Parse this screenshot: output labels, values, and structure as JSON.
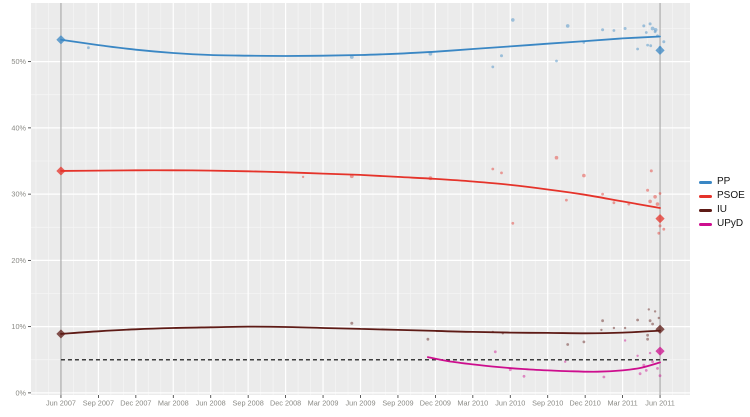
{
  "chart_data": {
    "type": "line",
    "description_visible_title": "",
    "x_axis": {
      "range_months": [
        -2.4,
        50.4
      ],
      "ticks": [
        {
          "t": 0,
          "label": "Jun 2007"
        },
        {
          "t": 3,
          "label": "Sep 2007"
        },
        {
          "t": 6,
          "label": "Dec 2007"
        },
        {
          "t": 9,
          "label": "Mar 2008"
        },
        {
          "t": 12,
          "label": "Jun 2008"
        },
        {
          "t": 15,
          "label": "Sep 2008"
        },
        {
          "t": 18,
          "label": "Dec 2008"
        },
        {
          "t": 21,
          "label": "Mar 2009"
        },
        {
          "t": 24,
          "label": "Jun 2009"
        },
        {
          "t": 27,
          "label": "Sep 2009"
        },
        {
          "t": 30,
          "label": "Dec 2009"
        },
        {
          "t": 33,
          "label": "Mar 2010"
        },
        {
          "t": 36,
          "label": "Jun 2010"
        },
        {
          "t": 39,
          "label": "Sep 2010"
        },
        {
          "t": 42,
          "label": "Dec 2010"
        },
        {
          "t": 45,
          "label": "Mar 2011"
        },
        {
          "t": 48,
          "label": "Jun 2011"
        }
      ]
    },
    "y_axis": {
      "range_pct": [
        -0.32,
        58.85
      ],
      "unit": "%",
      "ticks": [
        {
          "v": 0,
          "label": "0%"
        },
        {
          "v": 10,
          "label": "10%"
        },
        {
          "v": 20,
          "label": "20%"
        },
        {
          "v": 30,
          "label": "30%"
        },
        {
          "v": 40,
          "label": "40%"
        },
        {
          "v": 50,
          "label": "50%"
        }
      ],
      "minor_gridlines": [
        5,
        15,
        25,
        35,
        45,
        55
      ]
    },
    "grid": {
      "major_every_months": 3,
      "minor_every_months": 1,
      "on": true
    },
    "threshold_line": {
      "value": 5,
      "style": "dashed"
    },
    "election_lines_t": [
      0,
      48
    ],
    "legend": {
      "position": "right",
      "labels": [
        "PP",
        "PSOE",
        "IU",
        "UPyD"
      ]
    },
    "series": [
      {
        "name": "PP",
        "color": "#3a87c4",
        "trend": [
          [
            0,
            53.3
          ],
          [
            3,
            52.5
          ],
          [
            6,
            51.8
          ],
          [
            9,
            51.3
          ],
          [
            12,
            51.0
          ],
          [
            15,
            50.9
          ],
          [
            18,
            50.85
          ],
          [
            21,
            50.9
          ],
          [
            24,
            51.0
          ],
          [
            27,
            51.2
          ],
          [
            30,
            51.5
          ],
          [
            33,
            51.9
          ],
          [
            36,
            52.3
          ],
          [
            39,
            52.7
          ],
          [
            42,
            53.1
          ],
          [
            45,
            53.5
          ],
          [
            48,
            53.8
          ]
        ],
        "polls": [
          [
            2.2,
            52.1,
            1.4
          ],
          [
            23.3,
            50.7,
            1.9
          ],
          [
            29.6,
            51.2,
            1.9
          ],
          [
            34.6,
            49.2,
            1.4
          ],
          [
            35.3,
            50.9,
            1.5
          ],
          [
            36.2,
            56.3,
            1.8
          ],
          [
            39.7,
            50.1,
            1.4
          ],
          [
            40.6,
            55.4,
            1.8
          ],
          [
            41.9,
            52.9,
            1.4
          ],
          [
            43.4,
            54.8,
            1.5
          ],
          [
            44.3,
            54.7,
            1.4
          ],
          [
            45.2,
            55.0,
            1.5
          ],
          [
            46.2,
            51.9,
            1.4
          ],
          [
            46.7,
            55.4,
            1.5
          ],
          [
            46.9,
            54.4,
            1.4
          ],
          [
            47.0,
            52.5,
            1.4
          ],
          [
            47.2,
            55.7,
            1.5
          ],
          [
            47.25,
            52.4,
            1.4
          ],
          [
            47.4,
            55.0,
            1.9
          ],
          [
            47.6,
            54.5,
            1.4
          ],
          [
            47.65,
            54.8,
            1.8
          ],
          [
            47.8,
            53.9,
            1.4
          ],
          [
            48.0,
            52.2,
            1.4
          ],
          [
            48.3,
            53.0,
            1.5
          ]
        ],
        "election_results": [
          {
            "t": 0,
            "value": 53.3
          },
          {
            "t": 48,
            "value": 51.7
          }
        ]
      },
      {
        "name": "PSOE",
        "color": "#e5332a",
        "trend": [
          [
            0,
            33.5
          ],
          [
            3,
            33.55
          ],
          [
            6,
            33.6
          ],
          [
            9,
            33.6
          ],
          [
            12,
            33.55
          ],
          [
            15,
            33.45
          ],
          [
            18,
            33.3
          ],
          [
            21,
            33.1
          ],
          [
            24,
            32.9
          ],
          [
            27,
            32.6
          ],
          [
            30,
            32.3
          ],
          [
            33,
            31.9
          ],
          [
            36,
            31.4
          ],
          [
            39,
            30.7
          ],
          [
            42,
            29.9
          ],
          [
            45,
            28.9
          ],
          [
            48,
            27.9
          ]
        ],
        "polls": [
          [
            19.4,
            32.6,
            1.2
          ],
          [
            23.3,
            32.7,
            1.9
          ],
          [
            29.6,
            32.4,
            1.9
          ],
          [
            34.6,
            33.8,
            1.4
          ],
          [
            35.3,
            33.2,
            1.4
          ],
          [
            36.2,
            25.6,
            1.4
          ],
          [
            39.7,
            35.5,
            1.8
          ],
          [
            40.5,
            29.1,
            1.4
          ],
          [
            41.9,
            32.8,
            1.8
          ],
          [
            43.4,
            30.0,
            1.4
          ],
          [
            44.3,
            28.7,
            1.4
          ],
          [
            45.5,
            28.5,
            1.4
          ],
          [
            47.0,
            30.6,
            1.5
          ],
          [
            47.2,
            28.9,
            1.8
          ],
          [
            47.3,
            33.5,
            1.5
          ],
          [
            47.6,
            29.6,
            1.8
          ],
          [
            47.8,
            28.5,
            1.8
          ],
          [
            47.9,
            24.1,
            1.4
          ],
          [
            48.0,
            25.2,
            1.5
          ],
          [
            48.0,
            30.1,
            1.4
          ],
          [
            48.3,
            24.7,
            1.4
          ]
        ],
        "election_results": [
          {
            "t": 0,
            "value": 33.5
          },
          {
            "t": 48,
            "value": 26.3
          }
        ]
      },
      {
        "name": "IU",
        "color": "#5e1b16",
        "trend": [
          [
            0,
            8.9
          ],
          [
            3,
            9.3
          ],
          [
            6,
            9.6
          ],
          [
            9,
            9.8
          ],
          [
            12,
            9.9
          ],
          [
            15,
            10.0
          ],
          [
            18,
            9.95
          ],
          [
            21,
            9.8
          ],
          [
            24,
            9.65
          ],
          [
            27,
            9.5
          ],
          [
            30,
            9.35
          ],
          [
            33,
            9.2
          ],
          [
            36,
            9.1
          ],
          [
            39,
            9.05
          ],
          [
            42,
            9.0
          ],
          [
            45,
            9.1
          ],
          [
            48,
            9.4
          ]
        ],
        "polls": [
          [
            23.3,
            10.5,
            1.5
          ],
          [
            29.4,
            8.1,
            1.4
          ],
          [
            34.6,
            9.2,
            1.2
          ],
          [
            35.4,
            9.0,
            1.2
          ],
          [
            40.6,
            7.3,
            1.4
          ],
          [
            41.9,
            7.7,
            1.4
          ],
          [
            43.3,
            9.5,
            1.2
          ],
          [
            43.4,
            10.9,
            1.4
          ],
          [
            44.3,
            9.8,
            1.2
          ],
          [
            45.2,
            9.8,
            1.2
          ],
          [
            46.2,
            11.0,
            1.4
          ],
          [
            47.0,
            8.7,
            1.4
          ],
          [
            47.0,
            8.1,
            1.4
          ],
          [
            47.1,
            12.6,
            1.2
          ],
          [
            47.2,
            10.9,
            1.4
          ],
          [
            47.4,
            10.4,
            1.4
          ],
          [
            47.6,
            12.3,
            1.2
          ],
          [
            47.9,
            11.3,
            1.2
          ]
        ],
        "election_results": [
          {
            "t": 0,
            "value": 8.9
          },
          {
            "t": 48,
            "value": 9.6
          }
        ]
      },
      {
        "name": "UPyD",
        "color": "#cd0e8e",
        "trend": [
          [
            29.4,
            5.4
          ],
          [
            31,
            4.8
          ],
          [
            33,
            4.3
          ],
          [
            35,
            3.9
          ],
          [
            37,
            3.6
          ],
          [
            39,
            3.4
          ],
          [
            41,
            3.25
          ],
          [
            43,
            3.2
          ],
          [
            45,
            3.4
          ],
          [
            46.5,
            3.8
          ],
          [
            48,
            4.6
          ]
        ],
        "polls": [
          [
            34.8,
            6.2,
            1.4
          ],
          [
            36.0,
            3.5,
            1.4
          ],
          [
            37.1,
            2.5,
            1.4
          ],
          [
            40.4,
            4.7,
            1.2
          ],
          [
            43.5,
            2.4,
            1.4
          ],
          [
            45.2,
            7.9,
            1.2
          ],
          [
            46.2,
            5.6,
            1.2
          ],
          [
            46.4,
            2.9,
            1.4
          ],
          [
            46.7,
            4.2,
            1.4
          ],
          [
            46.9,
            3.4,
            1.4
          ],
          [
            47.2,
            6.0,
            1.2
          ],
          [
            47.4,
            4.7,
            1.4
          ],
          [
            47.8,
            3.7,
            1.4
          ],
          [
            48.0,
            2.6,
            1.4
          ]
        ],
        "election_results": [
          {
            "t": 48,
            "value": 6.3
          }
        ]
      }
    ]
  },
  "colors": {
    "page_bg": "#ffffff",
    "plot_bg": "#ebebeb",
    "grid_major": "#ffffff",
    "grid_minor": "#f5f5f5",
    "axis_text": "#8a8a85",
    "tick_mark": "#333333",
    "election_line": "#9b9b9b",
    "threshold": "#3b3b3b",
    "legend_text": "#141414"
  }
}
